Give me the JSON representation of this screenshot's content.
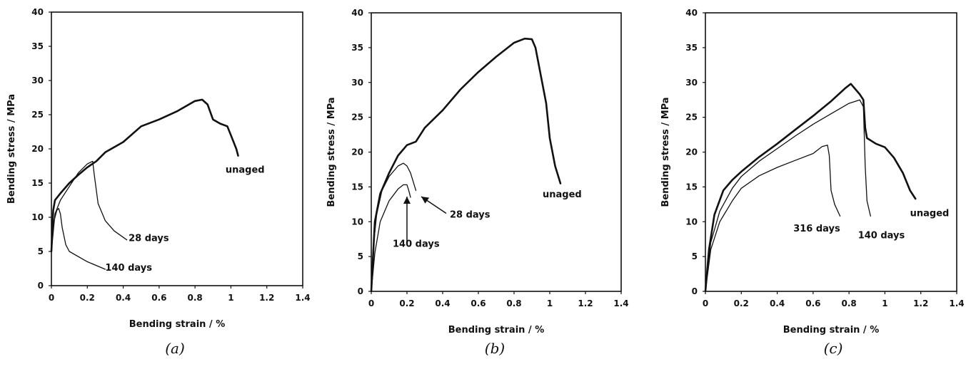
{
  "chart_data": [
    {
      "type": "line",
      "caption": "(a)",
      "xlabel": "Bending strain / %",
      "ylabel": "Bending stress / MPa",
      "xlim": [
        0,
        1.4
      ],
      "ylim": [
        0,
        40
      ],
      "xticks": [
        "0",
        "0.2",
        "0.4",
        "0.6",
        "0.8",
        "1",
        "1.2",
        "1.4"
      ],
      "yticks": [
        "0",
        "5",
        "10",
        "15",
        "20",
        "25",
        "30",
        "35",
        "40"
      ],
      "grid": false,
      "series": [
        {
          "name": "unaged",
          "bold": true,
          "x": [
            0,
            0.01,
            0.02,
            0.05,
            0.1,
            0.15,
            0.2,
            0.25,
            0.3,
            0.4,
            0.5,
            0.6,
            0.7,
            0.8,
            0.84,
            0.87,
            0.9,
            0.94,
            0.98,
            1.0,
            1.03,
            1.04
          ],
          "y": [
            5,
            11,
            12.5,
            13.5,
            15,
            16.2,
            17.3,
            18.2,
            19.5,
            21,
            23.3,
            24.3,
            25.5,
            27,
            27.2,
            26.5,
            24.3,
            23.7,
            23.3,
            22,
            20,
            19
          ]
        },
        {
          "name": "28 days",
          "bold": false,
          "x": [
            0,
            0.02,
            0.05,
            0.1,
            0.15,
            0.2,
            0.23,
            0.24,
            0.26,
            0.3,
            0.35,
            0.42
          ],
          "y": [
            5,
            10.5,
            12.5,
            14.5,
            16.5,
            17.8,
            18.2,
            16,
            12,
            9.5,
            8,
            6.7
          ]
        },
        {
          "name": "140 days",
          "bold": false,
          "x": [
            0,
            0.01,
            0.03,
            0.04,
            0.05,
            0.06,
            0.08,
            0.1,
            0.2,
            0.3
          ],
          "y": [
            5,
            9,
            11,
            11.3,
            10.5,
            8.5,
            6,
            5,
            3.5,
            2.4
          ]
        }
      ],
      "annotations": [
        {
          "text": "unaged",
          "x": 0.97,
          "y": 16.5
        },
        {
          "text": "28 days",
          "x": 0.43,
          "y": 6.5
        },
        {
          "text": "140 days",
          "x": 0.3,
          "y": 2.2
        }
      ]
    },
    {
      "type": "line",
      "caption": "(b)",
      "xlabel": "Bending strain / %",
      "ylabel": "Bending stress / MPa",
      "xlim": [
        0,
        1.4
      ],
      "ylim": [
        0,
        40
      ],
      "xticks": [
        "0",
        "0.2",
        "0.4",
        "0.6",
        "0.8",
        "1",
        "1.2",
        "1.4"
      ],
      "yticks": [
        "0",
        "5",
        "10",
        "15",
        "20",
        "25",
        "30",
        "35",
        "40"
      ],
      "grid": false,
      "series": [
        {
          "name": "unaged",
          "bold": true,
          "x": [
            0,
            0.02,
            0.05,
            0.1,
            0.15,
            0.2,
            0.25,
            0.3,
            0.4,
            0.5,
            0.6,
            0.7,
            0.8,
            0.86,
            0.9,
            0.92,
            0.95,
            0.98,
            1.0,
            1.03,
            1.06
          ],
          "y": [
            0,
            10,
            14,
            17,
            19.5,
            21,
            21.5,
            23.5,
            26,
            29,
            31.5,
            33.7,
            35.7,
            36.3,
            36.2,
            35,
            31,
            27,
            22,
            18,
            15.5
          ]
        },
        {
          "name": "28 days",
          "bold": false,
          "x": [
            0,
            0.01,
            0.03,
            0.06,
            0.1,
            0.15,
            0.18,
            0.2,
            0.22,
            0.25
          ],
          "y": [
            0,
            6,
            11,
            14.5,
            16.5,
            18,
            18.4,
            18,
            17,
            14.5
          ]
        },
        {
          "name": "140 days",
          "bold": false,
          "x": [
            0,
            0.02,
            0.05,
            0.1,
            0.15,
            0.18,
            0.2,
            0.21,
            0.22
          ],
          "y": [
            0,
            5.5,
            10,
            13,
            14.7,
            15.3,
            15.3,
            14.5,
            13.5
          ]
        }
      ],
      "annotations": [
        {
          "text": "unaged",
          "x": 0.96,
          "y": 13.5
        },
        {
          "text": "28 days",
          "x": 0.44,
          "y": 10.6
        },
        {
          "text": "140 days",
          "x": 0.12,
          "y": 6.4
        }
      ],
      "arrows": [
        {
          "from": [
            0.2,
            6.8
          ],
          "to": [
            0.2,
            13.6
          ]
        },
        {
          "from": [
            0.42,
            11.2
          ],
          "to": [
            0.28,
            13.6
          ]
        }
      ]
    },
    {
      "type": "line",
      "caption": "(c)",
      "xlabel": "Bending strain / %",
      "ylabel": "Bending stress / MPa",
      "xlim": [
        0,
        1.4
      ],
      "ylim": [
        0,
        40
      ],
      "xticks": [
        "0",
        "0.2",
        "0.4",
        "0.6",
        "0.8",
        "1",
        "1.2",
        "1.4"
      ],
      "yticks": [
        "0",
        "5",
        "10",
        "15",
        "20",
        "25",
        "30",
        "35",
        "40"
      ],
      "grid": false,
      "series": [
        {
          "name": "unaged",
          "bold": true,
          "x": [
            0,
            0.02,
            0.05,
            0.1,
            0.15,
            0.2,
            0.3,
            0.4,
            0.5,
            0.6,
            0.7,
            0.78,
            0.81,
            0.83,
            0.86,
            0.88,
            0.89,
            0.9,
            0.95,
            1.0,
            1.05,
            1.1,
            1.14,
            1.17
          ],
          "y": [
            0,
            6,
            11,
            14.5,
            16,
            17.2,
            19.3,
            21.2,
            23.2,
            25.2,
            27.3,
            29.2,
            29.8,
            29.2,
            28.3,
            27.5,
            23.5,
            22,
            21.2,
            20.7,
            19.2,
            17,
            14.5,
            13.3
          ]
        },
        {
          "name": "140 days",
          "bold": false,
          "x": [
            0,
            0.03,
            0.08,
            0.15,
            0.2,
            0.3,
            0.4,
            0.5,
            0.6,
            0.7,
            0.8,
            0.86,
            0.88,
            0.89,
            0.9,
            0.92
          ],
          "y": [
            0,
            7,
            11.5,
            14.8,
            16.5,
            18.7,
            20.5,
            22.3,
            24,
            25.5,
            27,
            27.5,
            26.5,
            18,
            13,
            10.8
          ]
        },
        {
          "name": "316 days",
          "bold": false,
          "x": [
            0,
            0.03,
            0.08,
            0.15,
            0.2,
            0.3,
            0.4,
            0.5,
            0.6,
            0.65,
            0.68,
            0.69,
            0.7,
            0.72,
            0.75
          ],
          "y": [
            0,
            6,
            10,
            13,
            14.8,
            16.6,
            17.8,
            18.8,
            19.8,
            20.8,
            21,
            19.5,
            14.5,
            12.5,
            10.8
          ]
        }
      ],
      "annotations": [
        {
          "text": "unaged",
          "x": 1.14,
          "y": 10.8
        },
        {
          "text": "140 days",
          "x": 0.85,
          "y": 7.6
        },
        {
          "text": "316 days",
          "x": 0.49,
          "y": 8.6
        }
      ]
    }
  ]
}
